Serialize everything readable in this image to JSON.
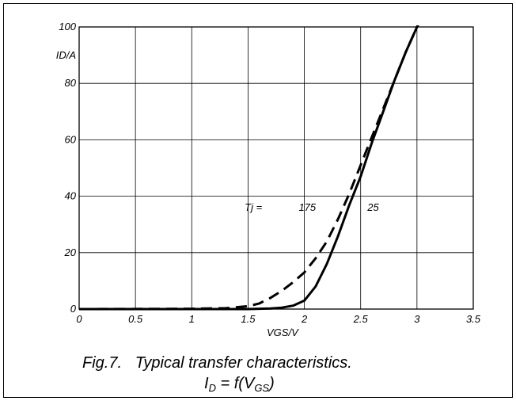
{
  "chart_data": {
    "type": "line",
    "title": "Fig.7.   Typical transfer characteristics.",
    "subtitle": "I_D = f(V_GS)",
    "xlabel": "VGS/V",
    "ylabel": "ID/A",
    "xlim": [
      0,
      3.5
    ],
    "ylim": [
      0,
      100
    ],
    "x_ticks": [
      "0",
      "0.5",
      "1",
      "1.5",
      "2",
      "2.5",
      "3",
      "3.5"
    ],
    "y_ticks": [
      "0",
      "20",
      "40",
      "60",
      "80",
      "100"
    ],
    "grid": true,
    "annotations": [
      {
        "text": "Tj =",
        "x": 1.47,
        "y": 36
      },
      {
        "text": "175",
        "x": 1.95,
        "y": 36
      },
      {
        "text": "25",
        "x": 2.56,
        "y": 36
      }
    ],
    "series": [
      {
        "name": "175",
        "style": "dashed",
        "x": [
          0,
          1.0,
          1.3,
          1.5,
          1.6,
          1.7,
          1.8,
          1.9,
          2.0,
          2.1,
          2.2,
          2.3,
          2.4,
          2.5,
          2.6,
          2.7,
          2.8,
          2.9,
          3.0,
          3.03
        ],
        "y": [
          0,
          0.1,
          0.3,
          1,
          2,
          4,
          6.5,
          9.5,
          13,
          18,
          24,
          32,
          41,
          51,
          61,
          71,
          81,
          91,
          100,
          102
        ]
      },
      {
        "name": "25",
        "style": "solid",
        "x": [
          0,
          1.5,
          1.7,
          1.8,
          1.9,
          2.0,
          2.1,
          2.2,
          2.3,
          2.4,
          2.5,
          2.6,
          2.7,
          2.8,
          2.9,
          3.0,
          3.05
        ],
        "y": [
          0,
          0,
          0.2,
          0.5,
          1.2,
          3,
          8,
          16,
          26,
          37,
          47,
          59,
          70,
          81,
          91,
          100,
          104
        ]
      }
    ]
  }
}
